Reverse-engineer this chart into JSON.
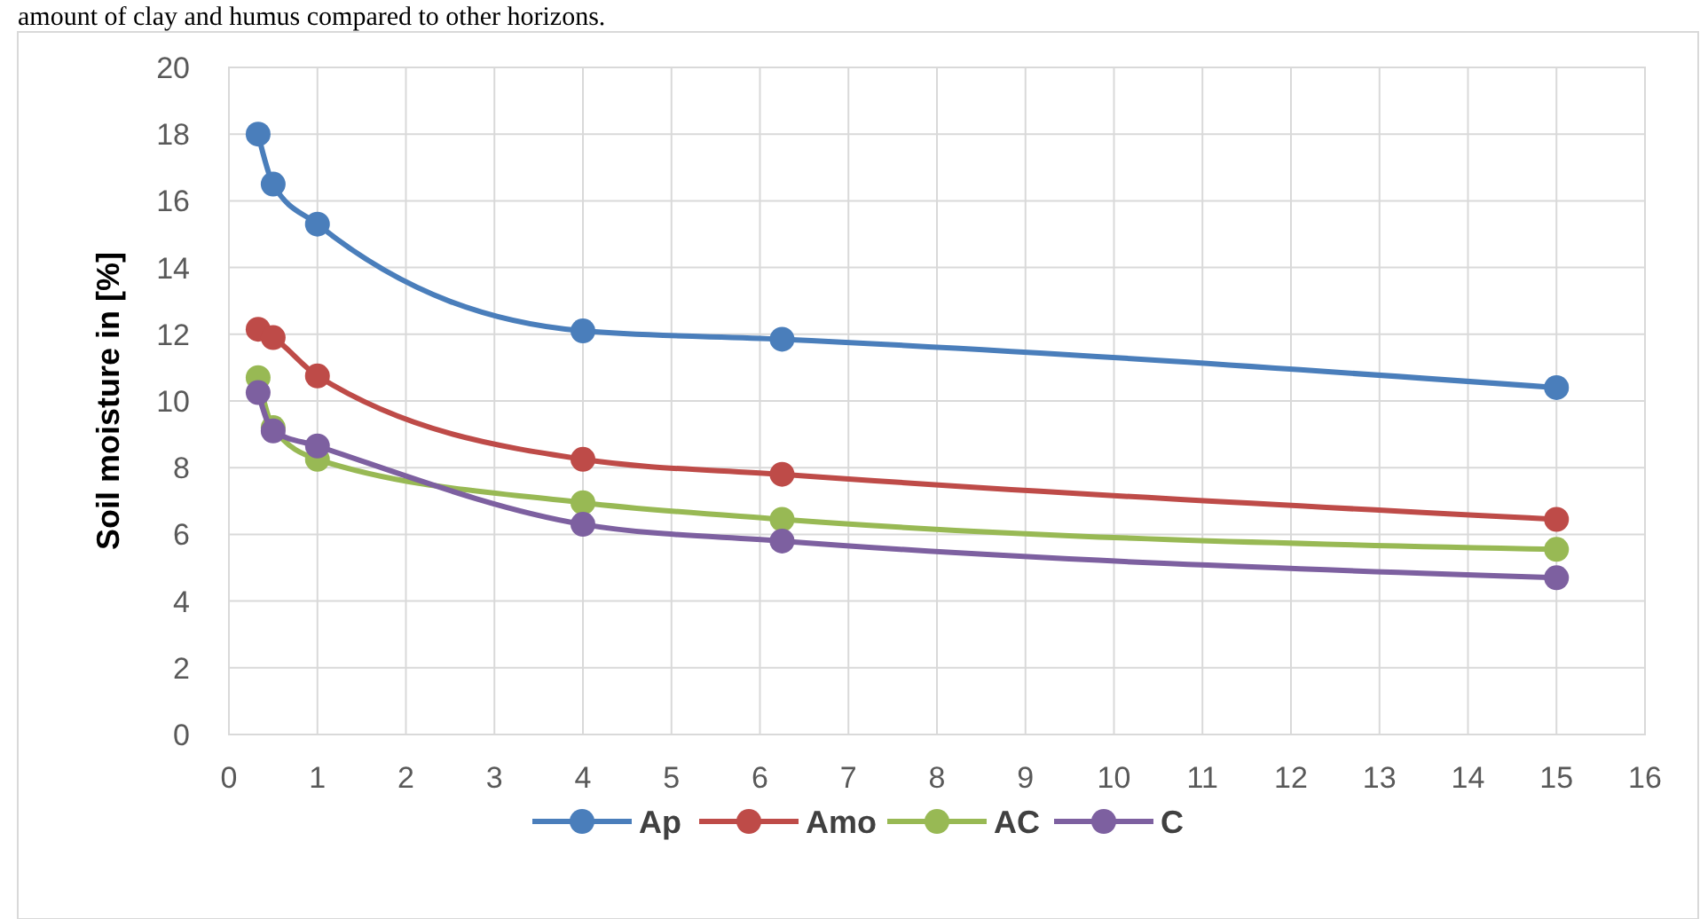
{
  "chart_data": {
    "type": "line",
    "ylabel": "Soil moisture in [%]",
    "annotations": [
      "amount of clay and humus compared to other horizons."
    ],
    "x": [
      0.33,
      0.5,
      1,
      4,
      6.25,
      15
    ],
    "series": [
      {
        "name": "Ap",
        "color": "#4a7ebb",
        "values": [
          18.0,
          16.5,
          15.3,
          12.1,
          11.85,
          10.4
        ]
      },
      {
        "name": "Amo",
        "color": "#be4b48",
        "values": [
          12.15,
          11.9,
          10.75,
          8.25,
          7.8,
          6.45
        ]
      },
      {
        "name": "AC",
        "color": "#98b954",
        "values": [
          10.7,
          9.2,
          8.25,
          6.95,
          6.45,
          5.55
        ]
      },
      {
        "name": "C",
        "color": "#7d60a0",
        "values": [
          10.25,
          9.1,
          8.65,
          6.3,
          5.8,
          4.7
        ]
      }
    ],
    "xlim": [
      0,
      16
    ],
    "xticks": [
      0,
      1,
      2,
      3,
      4,
      5,
      6,
      7,
      8,
      9,
      10,
      11,
      12,
      13,
      14,
      15,
      16
    ],
    "ylim": [
      0,
      20
    ],
    "yticks": [
      0,
      2,
      4,
      6,
      8,
      10,
      12,
      14,
      16,
      18,
      20
    ],
    "grid": true,
    "legend": "bottom",
    "marker": "circle",
    "line_style": "solid"
  }
}
